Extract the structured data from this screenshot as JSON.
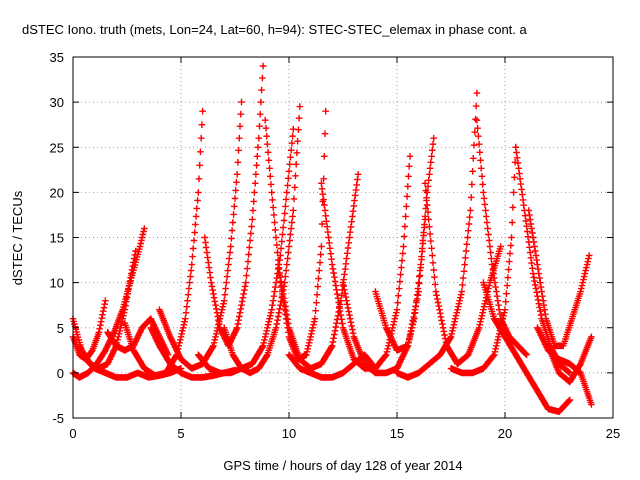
{
  "chart_data": {
    "type": "scatter",
    "title": "dSTEC Iono. truth (mets, Lon=24, Lat=60, h=94): STEC-STEC_elemax in phase cont. a",
    "xlabel": "GPS time / hours of day 128 of year 2014",
    "ylabel": "dSTEC  / TECUs",
    "xlim": [
      0,
      25
    ],
    "ylim": [
      -5,
      35
    ],
    "xticks": [
      "0",
      "5",
      "10",
      "15",
      "20",
      "25"
    ],
    "yticks": [
      "-5",
      "0",
      "5",
      "10",
      "15",
      "20",
      "25",
      "30",
      "35"
    ],
    "grid": true,
    "marker": "plus",
    "color": "#ff0000",
    "series": [
      {
        "x": [
          0.0,
          0.4,
          0.8,
          1.2,
          1.6,
          2.0,
          2.4,
          2.7,
          2.9
        ],
        "y": [
          6,
          2.5,
          1,
          0.5,
          1,
          3,
          7,
          11,
          13.5
        ]
      },
      {
        "x": [
          0.0,
          0.3,
          0.7,
          1.1,
          1.5,
          1.9,
          2.3,
          2.7,
          3.1,
          3.3
        ],
        "y": [
          0,
          -0.5,
          0,
          1,
          2.5,
          4.5,
          7,
          10.5,
          14,
          16
        ]
      },
      {
        "x": [
          0.0,
          0.3,
          0.6,
          0.9,
          1.2,
          1.5
        ],
        "y": [
          4,
          2,
          1.5,
          2.5,
          4.5,
          8
        ]
      },
      {
        "x": [
          0.3,
          0.6,
          1.0,
          1.5,
          2.0,
          2.5,
          3.0,
          3.5,
          4.0,
          4.5,
          5.0
        ],
        "y": [
          3,
          1.5,
          0.5,
          0,
          -0.5,
          -0.5,
          0,
          -0.5,
          -0.3,
          0,
          0.5
        ]
      },
      {
        "x": [
          1.6,
          2.0,
          2.4,
          2.8,
          3.2,
          3.6,
          4.0,
          4.4
        ],
        "y": [
          4.5,
          3,
          2.5,
          3,
          5,
          6,
          4,
          2
        ]
      },
      {
        "x": [
          2.4,
          2.8,
          3.3,
          3.8,
          4.3,
          4.8,
          5.2,
          5.5,
          5.8,
          6.0
        ],
        "y": [
          5.5,
          2.5,
          0.5,
          -0.3,
          0,
          2,
          6,
          12,
          20,
          29
        ]
      },
      {
        "x": [
          3.6,
          4.0,
          4.5,
          5.0,
          5.5,
          6.0,
          6.5,
          7.0,
          7.5
        ],
        "y": [
          5,
          3,
          1,
          0,
          -0.5,
          -0.5,
          -0.3,
          0,
          0.3
        ]
      },
      {
        "x": [
          4.0,
          4.5,
          5.0,
          5.5,
          6.0,
          6.5,
          7.0,
          7.3,
          7.6,
          7.8
        ],
        "y": [
          7,
          4,
          1.5,
          0.5,
          1,
          3,
          8,
          14,
          22,
          30
        ]
      },
      {
        "x": [
          6.1,
          6.4,
          6.8,
          7.2,
          7.6,
          8.0,
          8.3,
          8.6,
          8.8
        ],
        "y": [
          15,
          10,
          5,
          3,
          5,
          10,
          17,
          26,
          34
        ]
      },
      {
        "x": [
          5.8,
          6.3,
          6.8,
          7.3,
          7.8,
          8.3,
          8.8,
          9.2,
          9.6,
          9.9,
          10.2
        ],
        "y": [
          2,
          0.5,
          0,
          0,
          0.5,
          1,
          3,
          7,
          13,
          20,
          27
        ]
      },
      {
        "x": [
          7.0,
          7.4,
          7.8,
          8.2,
          8.6,
          9.0,
          9.4,
          9.8,
          10.2,
          10.5
        ],
        "y": [
          5,
          2,
          0.5,
          0,
          0.5,
          2,
          5,
          10,
          18,
          29.5
        ]
      },
      {
        "x": [
          8.9,
          9.2,
          9.6,
          10.0,
          10.4,
          10.8,
          11.2,
          11.5,
          11.7
        ],
        "y": [
          28,
          20,
          10,
          4,
          1.5,
          2,
          6,
          14,
          29
        ]
      },
      {
        "x": [
          9.5,
          10.0,
          10.5,
          11.0,
          11.5,
          12.0,
          12.4,
          12.8,
          13.2
        ],
        "y": [
          12,
          5,
          1.5,
          0.5,
          1,
          3,
          8,
          15,
          22
        ]
      },
      {
        "x": [
          10.0,
          10.5,
          11.0,
          11.5,
          12.0,
          12.5,
          13.0,
          13.5,
          14.0
        ],
        "y": [
          2,
          0.5,
          0,
          -0.5,
          -0.5,
          0,
          1,
          2,
          0.5
        ]
      },
      {
        "x": [
          11.5,
          12.0,
          12.5,
          13.0,
          13.5,
          14.0,
          14.5,
          15.0,
          15.3,
          15.6
        ],
        "y": [
          21,
          12,
          5,
          1.5,
          0.5,
          0.5,
          2,
          7,
          14,
          24
        ]
      },
      {
        "x": [
          12.5,
          13.0,
          13.5,
          14.0,
          14.5,
          15.0,
          15.5,
          16.0,
          16.3
        ],
        "y": [
          10,
          4,
          1,
          0,
          0,
          0.5,
          3,
          9,
          17
        ]
      },
      {
        "x": [
          14.0,
          14.5,
          15.0,
          15.5,
          15.8,
          16.1,
          16.4,
          16.7
        ],
        "y": [
          9,
          5,
          2.5,
          3,
          6,
          12,
          20,
          26
        ]
      },
      {
        "x": [
          15.0,
          15.5,
          16.0,
          16.5,
          17.0,
          17.5,
          18.0,
          18.4,
          18.7
        ],
        "y": [
          0,
          -0.5,
          0,
          1,
          2,
          4,
          9,
          18,
          31
        ]
      },
      {
        "x": [
          16.3,
          16.8,
          17.3,
          17.8,
          18.3,
          18.8,
          19.3,
          19.8
        ],
        "y": [
          21,
          9,
          3,
          1,
          2,
          5,
          10,
          14
        ]
      },
      {
        "x": [
          17.5,
          18.0,
          18.5,
          19.0,
          19.5,
          20.0,
          20.3,
          20.5
        ],
        "y": [
          0.5,
          0,
          0,
          0.5,
          2,
          7,
          15,
          25
        ]
      },
      {
        "x": [
          18.7,
          19.0,
          19.4,
          19.8,
          20.2,
          20.6,
          21.0
        ],
        "y": [
          28,
          20,
          12,
          6,
          4,
          3,
          2
        ]
      },
      {
        "x": [
          20.5,
          20.9,
          21.3,
          21.7,
          22.1,
          22.5,
          23.0
        ],
        "y": [
          25,
          18,
          11,
          6,
          3,
          1,
          0
        ]
      },
      {
        "x": [
          19.0,
          19.5,
          20.0,
          20.5,
          21.0,
          21.5,
          22.0,
          22.5,
          23.0
        ],
        "y": [
          10,
          6,
          4,
          2,
          0,
          -2,
          -4,
          -4.3,
          -3
        ]
      },
      {
        "x": [
          21.1,
          21.5,
          21.9,
          22.3,
          22.7,
          23.1,
          23.5,
          23.9
        ],
        "y": [
          18,
          12,
          6,
          3,
          3,
          6,
          9,
          13
        ]
      },
      {
        "x": [
          21.5,
          22.0,
          22.5,
          23.0,
          23.5,
          24.0
        ],
        "y": [
          5,
          2.5,
          1.5,
          1,
          0,
          -3.5
        ]
      },
      {
        "x": [
          22.0,
          22.5,
          23.0,
          23.5,
          24.0
        ],
        "y": [
          3,
          0,
          -1,
          1,
          4
        ]
      }
    ]
  }
}
